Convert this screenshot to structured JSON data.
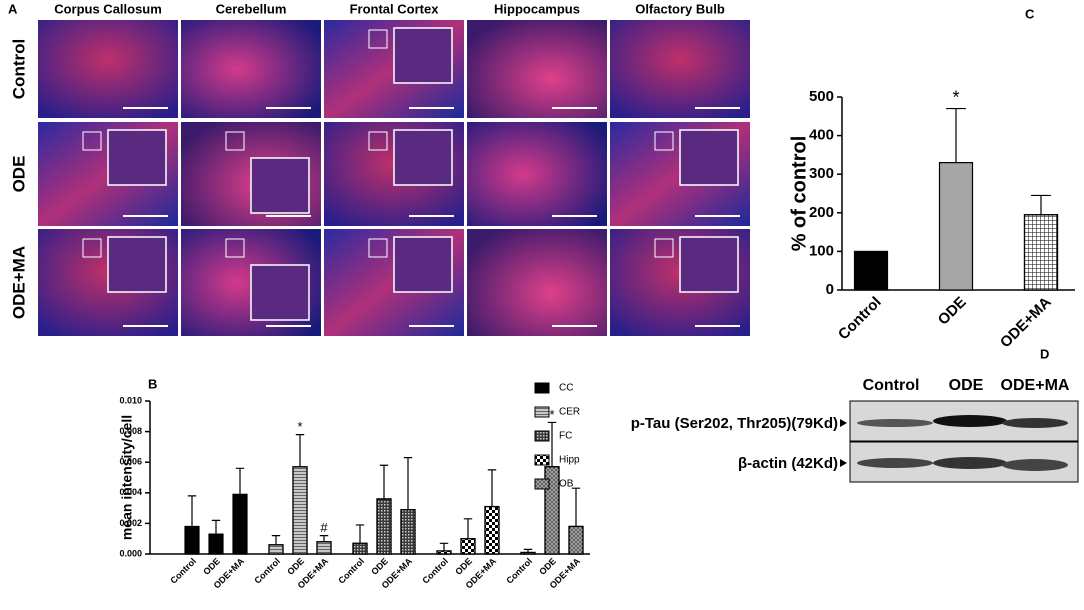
{
  "panel_a": {
    "label": "A",
    "columns": [
      "Corpus Callosum",
      "Cerebellum",
      "Frontal Cortex",
      "Hippocampus",
      "Olfactory Bulb"
    ],
    "rows": [
      "Control",
      "ODE",
      "ODE+MA"
    ]
  },
  "chart_data": [
    {
      "type": "bar",
      "label": "B",
      "ylabel": "mean intensity/cell",
      "categories": [
        "Control",
        "ODE",
        "ODE+MA"
      ],
      "series": [
        {
          "name": "CC",
          "color": "#000000",
          "pattern": "solid",
          "values": [
            0.0018,
            0.0013,
            0.0039
          ],
          "errors": [
            0.002,
            0.0009,
            0.0017
          ]
        },
        {
          "name": "CER",
          "color": "#c8c8c8",
          "pattern": "lines",
          "values": [
            0.0006,
            0.0057,
            0.0008
          ],
          "errors": [
            0.0006,
            0.0021,
            0.0004
          ]
        },
        {
          "name": "FC",
          "color": "#3a3a3a",
          "pattern": "dots",
          "values": [
            0.0007,
            0.0036,
            0.0029
          ],
          "errors": [
            0.0012,
            0.0022,
            0.0034
          ]
        },
        {
          "name": "Hipp",
          "color": "#ffffff",
          "pattern": "checker",
          "values": [
            0.0002,
            0.001,
            0.0031
          ],
          "errors": [
            0.0005,
            0.0013,
            0.0024
          ]
        },
        {
          "name": "OB",
          "color": "#555555",
          "pattern": "cross",
          "values": [
            0.0001,
            0.0057,
            0.0018
          ],
          "errors": [
            0.0002,
            0.0029,
            0.0025
          ]
        }
      ],
      "ylim": [
        0,
        0.01
      ],
      "yticks": [
        {
          "value": 0,
          "label": "0.000"
        },
        {
          "value": 0.002,
          "label": "0.002"
        },
        {
          "value": 0.004,
          "label": "0.004"
        },
        {
          "value": 0.006,
          "label": "0.006"
        },
        {
          "value": 0.008,
          "label": "0.008"
        },
        {
          "value": 0.01,
          "label": "0.010"
        }
      ],
      "annotations": [
        {
          "text": "*",
          "series": 1,
          "category": 1
        },
        {
          "text": "#",
          "series": 1,
          "category": 2
        },
        {
          "text": "*",
          "series": 4,
          "category": 1
        }
      ]
    },
    {
      "type": "bar",
      "label": "C",
      "ylabel": "% of control",
      "categories": [
        "Control",
        "ODE",
        "ODE+MA"
      ],
      "values": [
        100,
        330,
        195
      ],
      "errors": [
        null,
        140,
        50
      ],
      "colors": [
        "#000000",
        "#a6a6a6",
        "#ffffff"
      ],
      "patterns": [
        "solid",
        "solid",
        "grid"
      ],
      "ylim": [
        0,
        500
      ],
      "yticks": [
        0,
        100,
        200,
        300,
        400,
        500
      ],
      "annotations": [
        {
          "text": "*",
          "category": 1
        }
      ]
    }
  ],
  "panel_d": {
    "label": "D",
    "lanes": [
      "Control",
      "ODE",
      "ODE+MA"
    ],
    "bands": [
      "p-Tau (Ser202, Thr205)(79Kd)",
      "β-actin (42Kd)"
    ]
  }
}
